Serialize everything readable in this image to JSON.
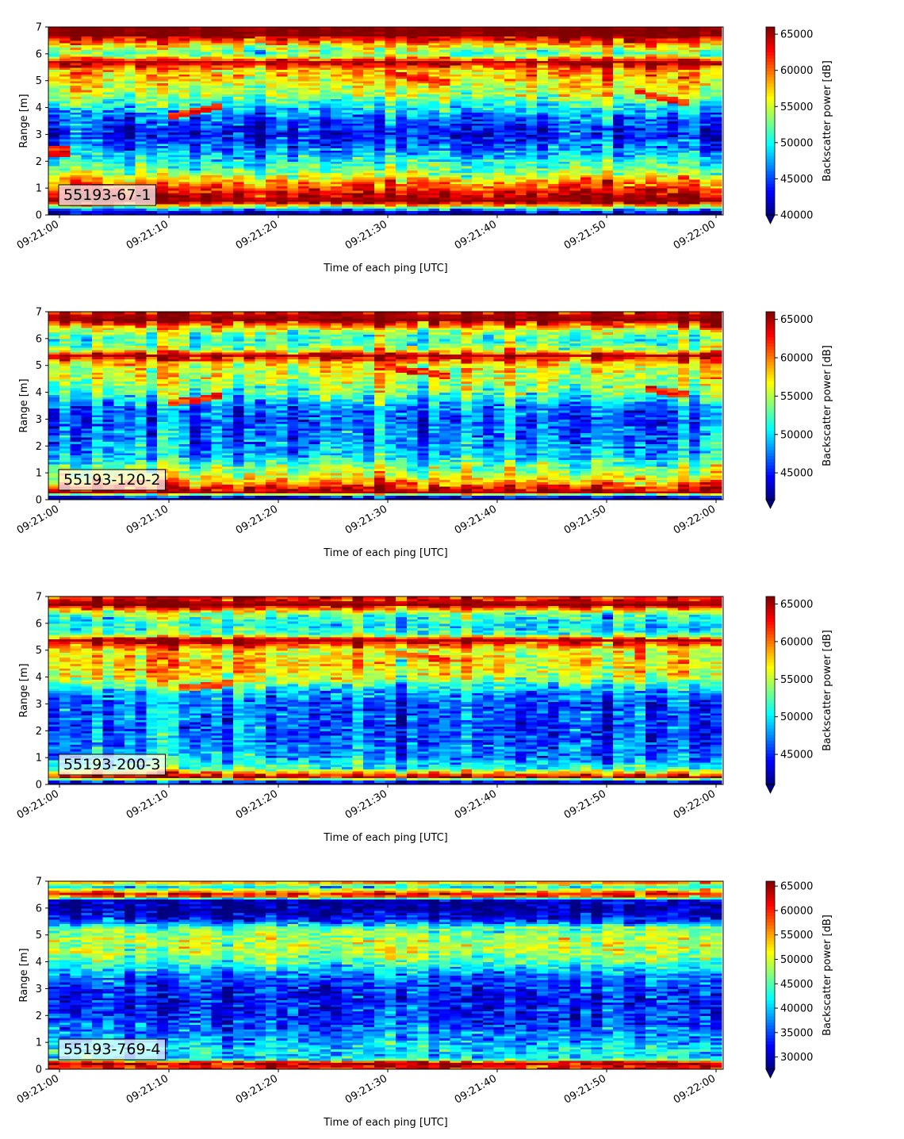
{
  "chart_data": [
    {
      "type": "heatmap",
      "label": "55193-67-1",
      "xlabel": "Time of each ping [UTC]",
      "ylabel": "Range [m]",
      "x_ticks": [
        "09:21:00",
        "09:21:10",
        "09:21:20",
        "09:21:30",
        "09:21:40",
        "09:21:50",
        "09:22:00"
      ],
      "y_ticks": [
        "0",
        "1",
        "2",
        "3",
        "4",
        "5",
        "6",
        "7"
      ],
      "ylim": [
        0,
        7
      ],
      "colorbar": {
        "label": "Backscatter power [dB]",
        "ticks": [
          "40000",
          "45000",
          "50000",
          "55000",
          "60000",
          "65000"
        ],
        "range": [
          40000,
          66000
        ],
        "colormap": "jet",
        "extend": "min"
      },
      "profile": {
        "range_m": [
          0.1,
          0.5,
          0.8,
          1.0,
          1.3,
          1.6,
          2.0,
          2.5,
          3.0,
          3.5,
          4.0,
          4.5,
          5.0,
          5.4,
          5.7,
          6.0,
          6.3,
          6.7,
          7.0
        ],
        "power": [
          40000,
          65800,
          63500,
          61000,
          58000,
          53000,
          50000,
          46000,
          43000,
          45000,
          49000,
          54000,
          56500,
          58000,
          65000,
          52000,
          56000,
          65800,
          65800
        ]
      },
      "features": [
        {
          "type": "target_track",
          "t_start_s": 10,
          "t_end_s": 15,
          "r_start_m": 3.7,
          "r_end_m": 4.1,
          "power": 62000
        },
        {
          "type": "target_track",
          "t_start_s": 30,
          "t_end_s": 36,
          "r_start_m": 5.3,
          "r_end_m": 4.9,
          "power": 62000
        },
        {
          "type": "target_track",
          "t_start_s": 53,
          "t_end_s": 58,
          "r_start_m": 4.6,
          "r_end_m": 4.1,
          "power": 62000
        },
        {
          "type": "patch",
          "t_start_s": -1,
          "t_end_s": 1,
          "r_start_m": 2.2,
          "r_end_m": 2.6,
          "power": 63000
        }
      ]
    },
    {
      "type": "heatmap",
      "label": "55193-120-2",
      "xlabel": "Time of each ping [UTC]",
      "ylabel": "Range [m]",
      "x_ticks": [
        "09:21:00",
        "09:21:10",
        "09:21:20",
        "09:21:30",
        "09:21:40",
        "09:21:50",
        "09:22:00"
      ],
      "y_ticks": [
        "0",
        "1",
        "2",
        "3",
        "4",
        "5",
        "6",
        "7"
      ],
      "ylim": [
        0,
        7
      ],
      "colorbar": {
        "label": "Backscatter power [dB]",
        "ticks": [
          "45000",
          "50000",
          "55000",
          "60000",
          "65000"
        ],
        "range": [
          41500,
          66000
        ],
        "colormap": "jet",
        "extend": "min"
      },
      "profile": {
        "range_m": [
          0.1,
          0.3,
          0.6,
          0.9,
          1.2,
          1.6,
          2.0,
          2.5,
          3.0,
          3.5,
          4.0,
          4.5,
          5.0,
          5.4,
          5.6,
          6.0,
          6.3,
          6.7,
          7.0
        ],
        "power": [
          41500,
          65800,
          60000,
          56000,
          54000,
          50000,
          48500,
          47500,
          46500,
          48000,
          53000,
          55500,
          56000,
          65500,
          55000,
          52000,
          55000,
          65800,
          64000
        ]
      },
      "features": [
        {
          "type": "target_track",
          "t_start_s": 10,
          "t_end_s": 15,
          "r_start_m": 3.6,
          "r_end_m": 3.9,
          "power": 62000
        },
        {
          "type": "target_track",
          "t_start_s": 29,
          "t_end_s": 36,
          "r_start_m": 5.0,
          "r_end_m": 4.6,
          "power": 62000
        },
        {
          "type": "target_track",
          "t_start_s": 54,
          "t_end_s": 58,
          "r_start_m": 4.1,
          "r_end_m": 3.9,
          "power": 62000
        }
      ]
    },
    {
      "type": "heatmap",
      "label": "55193-200-3",
      "xlabel": "Time of each ping [UTC]",
      "ylabel": "Range [m]",
      "x_ticks": [
        "09:21:00",
        "09:21:10",
        "09:21:20",
        "09:21:30",
        "09:21:40",
        "09:21:50",
        "09:22:00"
      ],
      "y_ticks": [
        "0",
        "1",
        "2",
        "3",
        "4",
        "5",
        "6",
        "7"
      ],
      "ylim": [
        0,
        7
      ],
      "colorbar": {
        "label": "Backscatter power [dB]",
        "ticks": [
          "45000",
          "50000",
          "55000",
          "60000",
          "65000"
        ],
        "range": [
          41000,
          66000
        ],
        "colormap": "jet",
        "extend": "min"
      },
      "profile": {
        "range_m": [
          0.1,
          0.3,
          0.6,
          1.0,
          1.5,
          2.0,
          2.5,
          3.0,
          3.5,
          4.0,
          4.5,
          5.0,
          5.4,
          5.6,
          6.0,
          6.4,
          6.7,
          7.0
        ],
        "power": [
          41000,
          65000,
          52000,
          48000,
          47000,
          46000,
          46500,
          46000,
          49000,
          56000,
          57500,
          56000,
          65500,
          52000,
          50000,
          54000,
          65800,
          62000
        ]
      },
      "features": [
        {
          "type": "target_track",
          "t_start_s": 11,
          "t_end_s": 16,
          "r_start_m": 3.6,
          "r_end_m": 3.8,
          "power": 61000
        },
        {
          "type": "target_track",
          "t_start_s": 31,
          "t_end_s": 36,
          "r_start_m": 4.9,
          "r_end_m": 4.6,
          "power": 61000
        }
      ]
    },
    {
      "type": "heatmap",
      "label": "55193-769-4",
      "xlabel": "Time of each ping [UTC]",
      "ylabel": "Range [m]",
      "x_ticks": [
        "09:21:00",
        "09:21:10",
        "09:21:20",
        "09:21:30",
        "09:21:40",
        "09:21:50",
        "09:22:00"
      ],
      "y_ticks": [
        "0",
        "1",
        "2",
        "3",
        "4",
        "5",
        "6",
        "7"
      ],
      "ylim": [
        0,
        7
      ],
      "colorbar": {
        "label": "Backscatter power [dB]",
        "ticks": [
          "30000",
          "35000",
          "40000",
          "45000",
          "50000",
          "55000",
          "60000",
          "65000"
        ],
        "range": [
          27500,
          66000
        ],
        "colormap": "jet",
        "extend": "min"
      },
      "profile": {
        "range_m": [
          0.1,
          0.25,
          0.4,
          0.7,
          1.0,
          1.5,
          2.0,
          2.5,
          3.0,
          3.5,
          4.0,
          4.5,
          5.0,
          5.3,
          5.6,
          6.0,
          6.3,
          6.5,
          6.8,
          7.0
        ],
        "power": [
          60000,
          65800,
          40000,
          42000,
          40000,
          36000,
          34000,
          33000,
          34000,
          37000,
          45000,
          49000,
          48500,
          45000,
          32000,
          28000,
          30000,
          65000,
          42000,
          58000
        ]
      },
      "features": []
    }
  ]
}
